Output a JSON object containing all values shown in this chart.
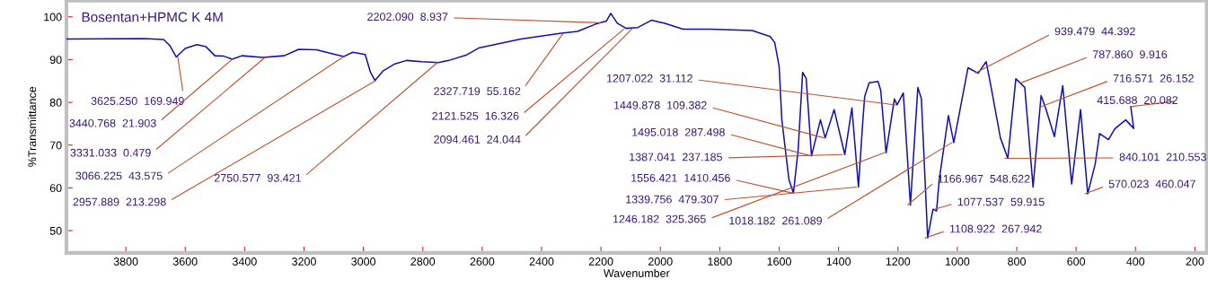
{
  "chart_data": {
    "type": "line",
    "title": "Bosentan+HPMC K 4M",
    "xlabel": "Wavenumber",
    "ylabel": "%Transmittance",
    "series": [
      {
        "color": "#1010b0",
        "x": [
          4000,
          3742,
          3673,
          3652,
          3630,
          3600,
          3561,
          3530,
          3500,
          3470,
          3442,
          3409,
          3339,
          3267,
          3218,
          3158,
          3067,
          3036,
          2994,
          2976,
          2961,
          2933,
          2894,
          2855,
          2803,
          2748,
          2712,
          2652,
          2612,
          2470,
          2339,
          2279,
          2218,
          2182,
          2167,
          2145,
          2115,
          2076,
          2030,
          1985,
          1924,
          1833,
          1691,
          1630,
          1615,
          1600,
          1591,
          1567,
          1552,
          1536,
          1521,
          1509,
          1491,
          1461,
          1445,
          1415,
          1379,
          1355,
          1333,
          1318,
          1312,
          1297,
          1267,
          1258,
          1240,
          1212,
          1203,
          1182,
          1158,
          1133,
          1121,
          1100,
          1082,
          1070,
          1061,
          1030,
          1012,
          964,
          930,
          903,
          888,
          855,
          830,
          803,
          773,
          745,
          718,
          703,
          673,
          645,
          615,
          585,
          561,
          536,
          521,
          491,
          470,
          433,
          406,
          416
        ],
        "values": [
          94.8,
          94.9,
          94.7,
          93.3,
          90.6,
          92.6,
          93.5,
          93.0,
          90.9,
          90.8,
          90.1,
          90.9,
          90.5,
          90.9,
          92.4,
          92.3,
          90.7,
          91.7,
          91.2,
          87.0,
          85.1,
          87.4,
          89.0,
          89.8,
          89.5,
          89.3,
          89.8,
          91.1,
          92.7,
          94.8,
          96.1,
          96.6,
          98.3,
          99.0,
          100.8,
          98.5,
          97.3,
          97.5,
          99.2,
          98.5,
          97.1,
          97.1,
          96.8,
          95.4,
          94.0,
          88.4,
          75.9,
          61.9,
          58.8,
          68.9,
          87.0,
          85.6,
          67.5,
          75.9,
          71.7,
          78.3,
          67.8,
          78.7,
          60.2,
          75.9,
          81.4,
          84.6,
          84.9,
          82.8,
          68.2,
          80.8,
          79.4,
          82.2,
          56.0,
          83.5,
          80.8,
          48.3,
          55.0,
          54.6,
          61.9,
          76.9,
          70.6,
          88.1,
          86.8,
          89.5,
          84.2,
          71.7,
          66.9,
          85.5,
          83.5,
          60.2,
          81.6,
          78.7,
          72.0,
          83.9,
          60.9,
          78.3,
          58.6,
          65.5,
          72.7,
          71.3,
          73.8,
          75.9,
          73.9,
          79.0
        ]
      }
    ],
    "xlim": [
      4000,
      160
    ],
    "ylim": [
      44.8,
      103.8
    ],
    "xticks": [
      3800,
      3600,
      3400,
      3200,
      3000,
      2800,
      2600,
      2400,
      2200,
      2000,
      1800,
      1600,
      1400,
      1200,
      1000,
      800,
      600,
      400,
      200
    ],
    "yticks": [
      50,
      60,
      70,
      80,
      90,
      100
    ],
    "grid": false,
    "legend": false,
    "marker": "none",
    "line_style": "solid",
    "annotations": [
      {
        "text": "3625.250  169.949",
        "x": 3625,
        "y": 90.6
      },
      {
        "text": "3440.768  21.903",
        "x": 3441,
        "y": 90.1
      },
      {
        "text": "3331.033  0.479",
        "x": 3331,
        "y": 90.5
      },
      {
        "text": "3066.225  43.575",
        "x": 3066,
        "y": 90.7
      },
      {
        "text": "2957.889  213.298",
        "x": 2958,
        "y": 85.1
      },
      {
        "text": "2750.577  93.421",
        "x": 2751,
        "y": 89.3
      },
      {
        "text": "2202.090  8.937",
        "x": 2202,
        "y": 98.6
      },
      {
        "text": "2327.719  55.162",
        "x": 2328,
        "y": 96.1
      },
      {
        "text": "2121.525  16.326",
        "x": 2122,
        "y": 97.2
      },
      {
        "text": "2094.461  24.044",
        "x": 2094,
        "y": 97.3
      },
      {
        "text": "1207.022  31.112",
        "x": 1207,
        "y": 79.4
      },
      {
        "text": "1449.878  109.382",
        "x": 1450,
        "y": 71.7
      },
      {
        "text": "1495.018  287.498",
        "x": 1495,
        "y": 67.5
      },
      {
        "text": "1387.041  237.185",
        "x": 1387,
        "y": 67.8
      },
      {
        "text": "1556.421  1410.456",
        "x": 1556,
        "y": 58.8
      },
      {
        "text": "1339.756  479.307",
        "x": 1340,
        "y": 60.2
      },
      {
        "text": "1246.182  325.365",
        "x": 1246,
        "y": 68.2
      },
      {
        "text": "1018.182  261.089",
        "x": 1018,
        "y": 70.6
      },
      {
        "text": "939.479  44.392",
        "x": 939,
        "y": 86.9
      },
      {
        "text": "787.860  9.916",
        "x": 788,
        "y": 84.5
      },
      {
        "text": "716.571  26.152",
        "x": 717,
        "y": 79.0
      },
      {
        "text": "415.688  20.082",
        "x": 416,
        "y": 79.0
      },
      {
        "text": "840.101  210.553",
        "x": 840,
        "y": 66.9
      },
      {
        "text": "570.023  460.047",
        "x": 570,
        "y": 58.6
      },
      {
        "text": "1166.967  548.622",
        "x": 1167,
        "y": 56.0
      },
      {
        "text": "1077.537  59.915",
        "x": 1078,
        "y": 55.0
      },
      {
        "text": "1108.922  267.942",
        "x": 1109,
        "y": 48.3
      }
    ]
  }
}
